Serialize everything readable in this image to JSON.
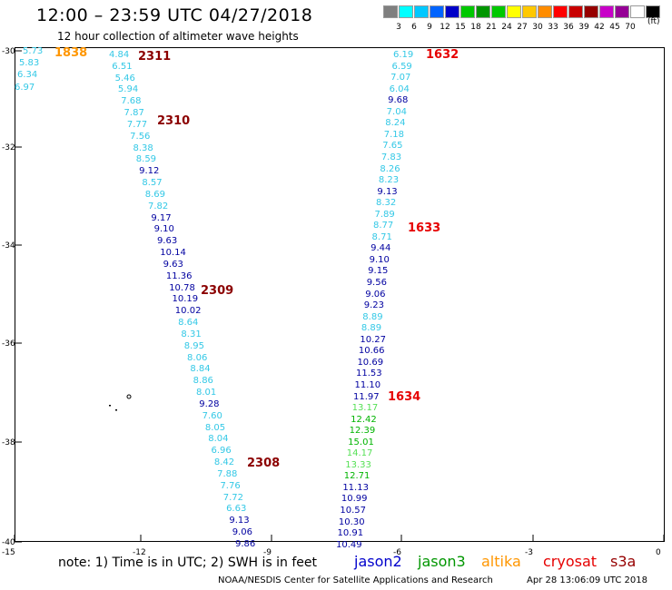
{
  "title": "12:00 – 23:59 UTC 04/27/2018",
  "subtitle": "12 hour collection of altimeter wave heights",
  "scale": {
    "units": "(ft)",
    "swatches": [
      {
        "color": "#7f7f7f",
        "label": ""
      },
      {
        "color": "#00ffff",
        "label": "3"
      },
      {
        "color": "#00c8ff",
        "label": "6"
      },
      {
        "color": "#0064ff",
        "label": "9"
      },
      {
        "color": "#0000c8",
        "label": "12"
      },
      {
        "color": "#00c800",
        "label": "15"
      },
      {
        "color": "#009600",
        "label": "18"
      },
      {
        "color": "#00c800",
        "label": "21"
      },
      {
        "color": "#ffff00",
        "label": "24"
      },
      {
        "color": "#ffc800",
        "label": "27"
      },
      {
        "color": "#ff8c00",
        "label": "30"
      },
      {
        "color": "#ff0000",
        "label": "33"
      },
      {
        "color": "#c80000",
        "label": "36"
      },
      {
        "color": "#960000",
        "label": "39"
      },
      {
        "color": "#c800c8",
        "label": "42"
      },
      {
        "color": "#960096",
        "label": "45"
      },
      {
        "color": "#ffffff",
        "label": "70"
      },
      {
        "color": "#000000",
        "label": ""
      }
    ]
  },
  "axes": {
    "lat_ticks": [
      "-30",
      "-32",
      "-34",
      "-36",
      "-38",
      "-40"
    ],
    "lon_ticks": [
      "-15",
      "-12",
      "-9",
      "-6",
      "-3",
      "0"
    ]
  },
  "colors": {
    "lightblue": "#33c8e6",
    "darkblue": "#0000a0",
    "lightgreen": "#55e055",
    "green": "#00b400",
    "jason2": "#0000cc",
    "jason3": "#009600",
    "altika": "#ff9600",
    "cryosat": "#e60000",
    "s3a": "#960000",
    "pass_dark": "#8b0000",
    "pass_red": "#e60000",
    "pass_orange": "#ff9600"
  },
  "passes": [
    {
      "label": "1838",
      "color": "orange"
    },
    {
      "label": "2311",
      "color": "dark"
    },
    {
      "label": "2310",
      "color": "dark"
    },
    {
      "label": "2309",
      "color": "dark"
    },
    {
      "label": "2308",
      "color": "dark"
    },
    {
      "label": "1632",
      "color": "red"
    },
    {
      "label": "1633",
      "color": "red"
    },
    {
      "label": "1634",
      "color": "red"
    }
  ],
  "tracks": {
    "altika_top": [
      "5.73",
      "5.83",
      "6.34",
      "6.97"
    ],
    "s3a": [
      {
        "v": "4.84",
        "c": "lb"
      },
      {
        "v": "6.51",
        "c": "lb"
      },
      {
        "v": "5.46",
        "c": "lb"
      },
      {
        "v": "5.94",
        "c": "lb"
      },
      {
        "v": "7.68",
        "c": "lb"
      },
      {
        "v": "7.87",
        "c": "lb"
      },
      {
        "v": "7.77",
        "c": "lb"
      },
      {
        "v": "7.56",
        "c": "lb"
      },
      {
        "v": "8.38",
        "c": "lb"
      },
      {
        "v": "8.59",
        "c": "lb"
      },
      {
        "v": "9.12",
        "c": "db"
      },
      {
        "v": "8.57",
        "c": "lb"
      },
      {
        "v": "8.69",
        "c": "lb"
      },
      {
        "v": "7.82",
        "c": "lb"
      },
      {
        "v": "9.17",
        "c": "db"
      },
      {
        "v": "9.10",
        "c": "db"
      },
      {
        "v": "9.63",
        "c": "db"
      },
      {
        "v": "10.14",
        "c": "db"
      },
      {
        "v": "9.63",
        "c": "db"
      },
      {
        "v": "11.36",
        "c": "db"
      },
      {
        "v": "10.78",
        "c": "db"
      },
      {
        "v": "10.19",
        "c": "db"
      },
      {
        "v": "10.02",
        "c": "db"
      },
      {
        "v": "8.64",
        "c": "lb"
      },
      {
        "v": "8.31",
        "c": "lb"
      },
      {
        "v": "8.95",
        "c": "lb"
      },
      {
        "v": "8.06",
        "c": "lb"
      },
      {
        "v": "8.84",
        "c": "lb"
      },
      {
        "v": "8.86",
        "c": "lb"
      },
      {
        "v": "8.01",
        "c": "lb"
      },
      {
        "v": "9.28",
        "c": "db"
      },
      {
        "v": "7.60",
        "c": "lb"
      },
      {
        "v": "8.05",
        "c": "lb"
      },
      {
        "v": "8.04",
        "c": "lb"
      },
      {
        "v": "6.96",
        "c": "lb"
      },
      {
        "v": "8.42",
        "c": "lb"
      },
      {
        "v": "7.88",
        "c": "lb"
      },
      {
        "v": "7.76",
        "c": "lb"
      },
      {
        "v": "7.72",
        "c": "lb"
      },
      {
        "v": "6.63",
        "c": "lb"
      },
      {
        "v": "9.13",
        "c": "db"
      },
      {
        "v": "9.06",
        "c": "db"
      },
      {
        "v": "9.86",
        "c": "db"
      }
    ],
    "cryosat": [
      {
        "v": "6.19",
        "c": "lb"
      },
      {
        "v": "6.59",
        "c": "lb"
      },
      {
        "v": "7.07",
        "c": "lb"
      },
      {
        "v": "6.04",
        "c": "lb"
      },
      {
        "v": "9.68",
        "c": "db"
      },
      {
        "v": "7.04",
        "c": "lb"
      },
      {
        "v": "8.24",
        "c": "lb"
      },
      {
        "v": "7.18",
        "c": "lb"
      },
      {
        "v": "7.65",
        "c": "lb"
      },
      {
        "v": "7.83",
        "c": "lb"
      },
      {
        "v": "8.26",
        "c": "lb"
      },
      {
        "v": "8.23",
        "c": "lb"
      },
      {
        "v": "9.13",
        "c": "db"
      },
      {
        "v": "8.32",
        "c": "lb"
      },
      {
        "v": "7.89",
        "c": "lb"
      },
      {
        "v": "8.77",
        "c": "lb"
      },
      {
        "v": "8.71",
        "c": "lb"
      },
      {
        "v": "9.44",
        "c": "db"
      },
      {
        "v": "9.10",
        "c": "db"
      },
      {
        "v": "9.15",
        "c": "db"
      },
      {
        "v": "9.56",
        "c": "db"
      },
      {
        "v": "9.06",
        "c": "db"
      },
      {
        "v": "9.23",
        "c": "db"
      },
      {
        "v": "8.89",
        "c": "lb"
      },
      {
        "v": "8.89",
        "c": "lb"
      },
      {
        "v": "10.27",
        "c": "db"
      },
      {
        "v": "10.66",
        "c": "db"
      },
      {
        "v": "10.69",
        "c": "db"
      },
      {
        "v": "11.53",
        "c": "db"
      },
      {
        "v": "11.10",
        "c": "db"
      },
      {
        "v": "11.97",
        "c": "db"
      },
      {
        "v": "13.17",
        "c": "lg"
      },
      {
        "v": "12.42",
        "c": "g"
      },
      {
        "v": "12.39",
        "c": "g"
      },
      {
        "v": "15.01",
        "c": "g"
      },
      {
        "v": "14.17",
        "c": "lg"
      },
      {
        "v": "13.33",
        "c": "lg"
      },
      {
        "v": "12.71",
        "c": "g"
      },
      {
        "v": "11.13",
        "c": "db"
      },
      {
        "v": "10.99",
        "c": "db"
      },
      {
        "v": "10.57",
        "c": "db"
      },
      {
        "v": "10.30",
        "c": "db"
      },
      {
        "v": "10.91",
        "c": "db"
      },
      {
        "v": "10.49",
        "c": "db"
      }
    ]
  },
  "note": "note:  1) Time is in UTC;  2) SWH is in feet",
  "legend": [
    "jason2",
    "jason3",
    "altika",
    "cryosat",
    "s3a"
  ],
  "credit": "NOAA/NESDIS Center for Satellite Applications and Research",
  "timestamp": "Apr 28 13:06:09 UTC 2018"
}
